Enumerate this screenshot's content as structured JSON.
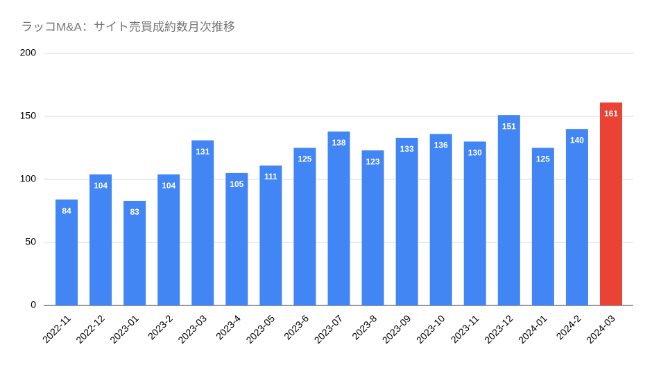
{
  "chart_data": {
    "type": "bar",
    "title": "ラッコM&A：サイト売買成約数月次推移",
    "categories": [
      "2022-11",
      "2022-12",
      "2023-01",
      "2023-2",
      "2023-03",
      "2023-4",
      "2023-05",
      "2023-6",
      "2023-07",
      "2023-8",
      "2023-09",
      "2023-10",
      "2023-11",
      "2023-12",
      "2024-01",
      "2024-2",
      "2024-03"
    ],
    "values": [
      84,
      104,
      83,
      104,
      131,
      105,
      111,
      125,
      138,
      123,
      133,
      136,
      130,
      151,
      125,
      140,
      161
    ],
    "colors": [
      "#4285f4",
      "#4285f4",
      "#4285f4",
      "#4285f4",
      "#4285f4",
      "#4285f4",
      "#4285f4",
      "#4285f4",
      "#4285f4",
      "#4285f4",
      "#4285f4",
      "#4285f4",
      "#4285f4",
      "#4285f4",
      "#4285f4",
      "#4285f4",
      "#ea4335"
    ],
    "ylim": [
      0,
      200
    ],
    "yticks": [
      0,
      50,
      100,
      150,
      200
    ],
    "grid": true
  }
}
